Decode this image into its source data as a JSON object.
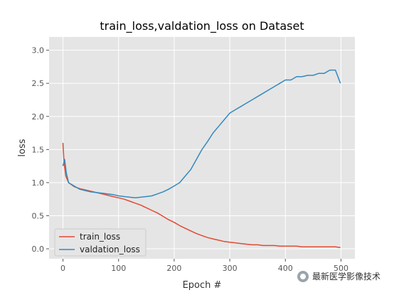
{
  "chart_data": {
    "type": "line",
    "title": "train_loss,valdation_loss on Dataset",
    "xlabel": "Epoch #",
    "ylabel": "loss",
    "xlim": [
      -25,
      525
    ],
    "ylim": [
      -0.15,
      3.2
    ],
    "xticks": [
      0,
      100,
      200,
      300,
      400,
      500
    ],
    "yticks": [
      0.0,
      0.5,
      1.0,
      1.5,
      2.0,
      2.5,
      3.0
    ],
    "grid": true,
    "legend_position": "lower-left",
    "series": [
      {
        "name": "train_loss",
        "color": "#E24A33",
        "x": [
          0,
          2,
          5,
          10,
          20,
          30,
          40,
          50,
          60,
          70,
          80,
          90,
          100,
          110,
          120,
          130,
          140,
          150,
          160,
          170,
          180,
          190,
          200,
          210,
          220,
          230,
          240,
          250,
          260,
          270,
          280,
          290,
          300,
          310,
          320,
          330,
          340,
          350,
          360,
          370,
          380,
          390,
          400,
          410,
          420,
          430,
          440,
          450,
          460,
          470,
          480,
          490,
          499
        ],
        "y": [
          1.6,
          1.3,
          1.1,
          1.0,
          0.94,
          0.91,
          0.89,
          0.87,
          0.85,
          0.83,
          0.81,
          0.79,
          0.77,
          0.75,
          0.72,
          0.69,
          0.66,
          0.62,
          0.58,
          0.54,
          0.49,
          0.44,
          0.4,
          0.35,
          0.31,
          0.27,
          0.23,
          0.2,
          0.17,
          0.15,
          0.13,
          0.11,
          0.1,
          0.09,
          0.08,
          0.07,
          0.06,
          0.06,
          0.05,
          0.05,
          0.05,
          0.04,
          0.04,
          0.04,
          0.04,
          0.03,
          0.03,
          0.03,
          0.03,
          0.03,
          0.03,
          0.03,
          0.02
        ]
      },
      {
        "name": "valdation_loss",
        "color": "#348ABD",
        "x": [
          0,
          3,
          6,
          10,
          20,
          30,
          40,
          50,
          60,
          70,
          80,
          90,
          100,
          110,
          120,
          130,
          140,
          150,
          160,
          170,
          180,
          190,
          200,
          210,
          220,
          230,
          240,
          250,
          260,
          270,
          280,
          290,
          300,
          310,
          320,
          330,
          340,
          350,
          360,
          370,
          380,
          390,
          400,
          410,
          420,
          430,
          440,
          450,
          460,
          470,
          480,
          490,
          499
        ],
        "y": [
          1.25,
          1.35,
          1.15,
          1.0,
          0.95,
          0.9,
          0.88,
          0.86,
          0.85,
          0.84,
          0.83,
          0.82,
          0.8,
          0.79,
          0.78,
          0.77,
          0.78,
          0.79,
          0.8,
          0.83,
          0.86,
          0.9,
          0.95,
          1.0,
          1.1,
          1.2,
          1.35,
          1.5,
          1.62,
          1.75,
          1.85,
          1.95,
          2.05,
          2.1,
          2.15,
          2.2,
          2.25,
          2.3,
          2.35,
          2.4,
          2.45,
          2.5,
          2.55,
          2.55,
          2.6,
          2.6,
          2.62,
          2.62,
          2.65,
          2.65,
          2.7,
          2.7,
          2.5
        ]
      }
    ]
  },
  "watermark": {
    "text": "最新医学影像技术"
  }
}
